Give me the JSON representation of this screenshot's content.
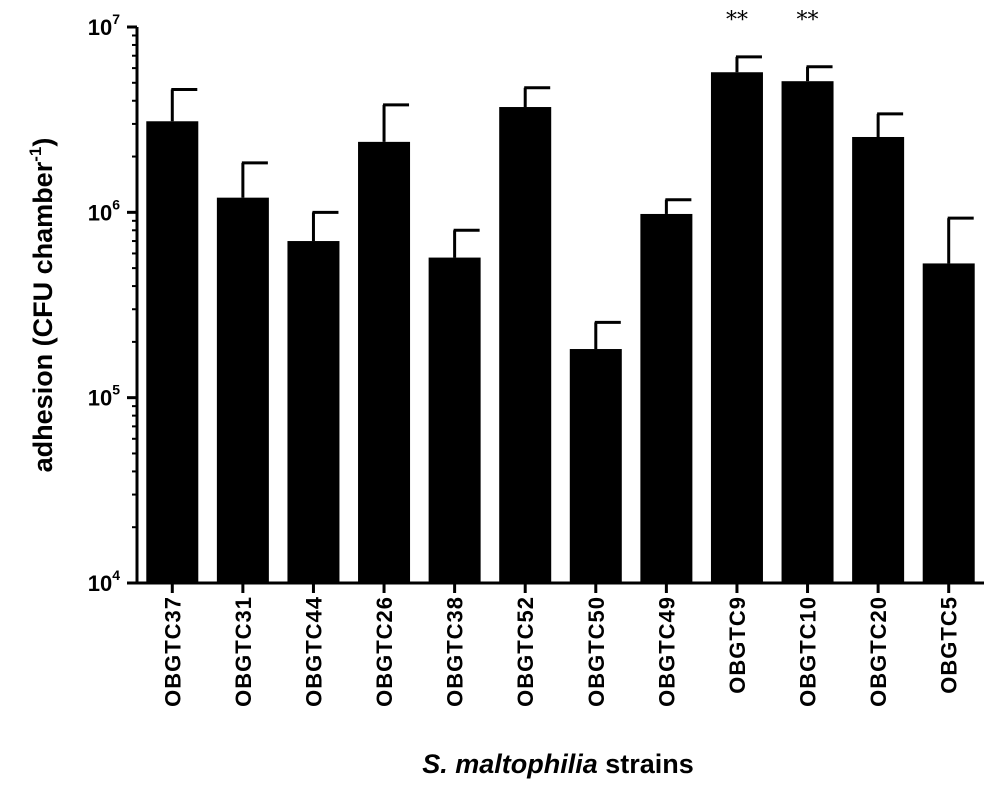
{
  "chart_data": {
    "type": "bar",
    "ylabel_main": "adhesion (CFU chamber",
    "ylabel_sup": "-1",
    "ylabel_close": ")",
    "xlabel_italic": "S. maltophilia",
    "xlabel_rest": " strains",
    "yscale": "log",
    "ylim": [
      10000,
      10000000
    ],
    "yticks": [
      {
        "value": 10000,
        "base": "10",
        "exp": "4"
      },
      {
        "value": 100000,
        "base": "10",
        "exp": "5"
      },
      {
        "value": 1000000,
        "base": "10",
        "exp": "6"
      },
      {
        "value": 10000000,
        "base": "10",
        "exp": "7"
      }
    ],
    "categories": [
      "OBGTC37",
      "OBGTC31",
      "OBGTC44",
      "OBGTC26",
      "OBGTC38",
      "OBGTC52",
      "OBGTC50",
      "OBGTC49",
      "OBGTC9",
      "OBGTC10",
      "OBGTC20",
      "OBGTC5"
    ],
    "values": [
      3100000,
      1200000,
      700000,
      2400000,
      570000,
      3700000,
      183000,
      980000,
      5700000,
      5100000,
      2550000,
      530000
    ],
    "error_upper": [
      4600000,
      1850000,
      1000000,
      3800000,
      800000,
      4700000,
      255000,
      1170000,
      6900000,
      6100000,
      3400000,
      930000
    ],
    "annotations": [
      "",
      "",
      "",
      "",
      "",
      "",
      "",
      "",
      "**",
      "**",
      "",
      ""
    ],
    "grid": false,
    "legend": "none",
    "bar_color": "#000000"
  }
}
